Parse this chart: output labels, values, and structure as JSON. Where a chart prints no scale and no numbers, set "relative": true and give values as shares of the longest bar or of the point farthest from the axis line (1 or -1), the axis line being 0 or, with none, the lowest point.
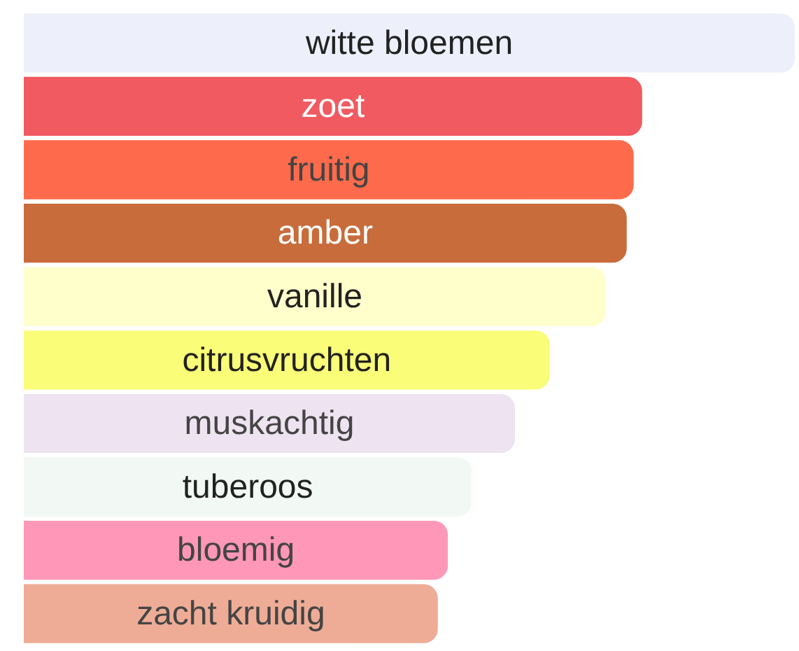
{
  "chart_data": {
    "type": "bar",
    "orientation": "horizontal",
    "relative": true,
    "categories": [
      "witte bloemen",
      "zoet",
      "fruitig",
      "amber",
      "vanille",
      "citrusvruchten",
      "muskachtig",
      "tuberoos",
      "bloemig",
      "zacht kruidig"
    ],
    "values": [
      1,
      0.802,
      0.791,
      0.782,
      0.755,
      0.682,
      0.637,
      0.581,
      0.55,
      0.537
    ],
    "colors": [
      "#edf0fa",
      "#f05a60",
      "#fe6b4c",
      "#c76c3a",
      "#ffffcc",
      "#fafd78",
      "#eee3f0",
      "#f2f9f4",
      "#fe97b8",
      "#eeac96"
    ],
    "legend": false
  }
}
